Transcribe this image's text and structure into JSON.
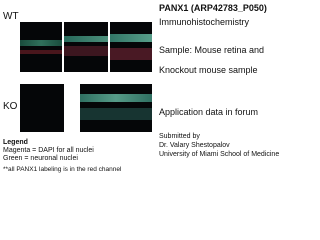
{
  "panels": {
    "wt_label": "WT",
    "ko_label": "KO"
  },
  "legend": {
    "title": "Legend",
    "lines": [
      "Magenta = DAPI for all nuclei",
      "Green = neuronal nuclei"
    ],
    "note": "**all PANX1 labeling is in the red channel"
  },
  "info": {
    "title": "PANX1 (ARP42783_P050)",
    "method": "Immunohistochemistry",
    "sample": [
      "Sample: Mouse retina and",
      "Knockout mouse sample"
    ],
    "application": "Application data in forum",
    "submitted": [
      "Submitted by",
      "Dr. Valary Shestopalov",
      "University of Miami School of Medicine"
    ]
  }
}
